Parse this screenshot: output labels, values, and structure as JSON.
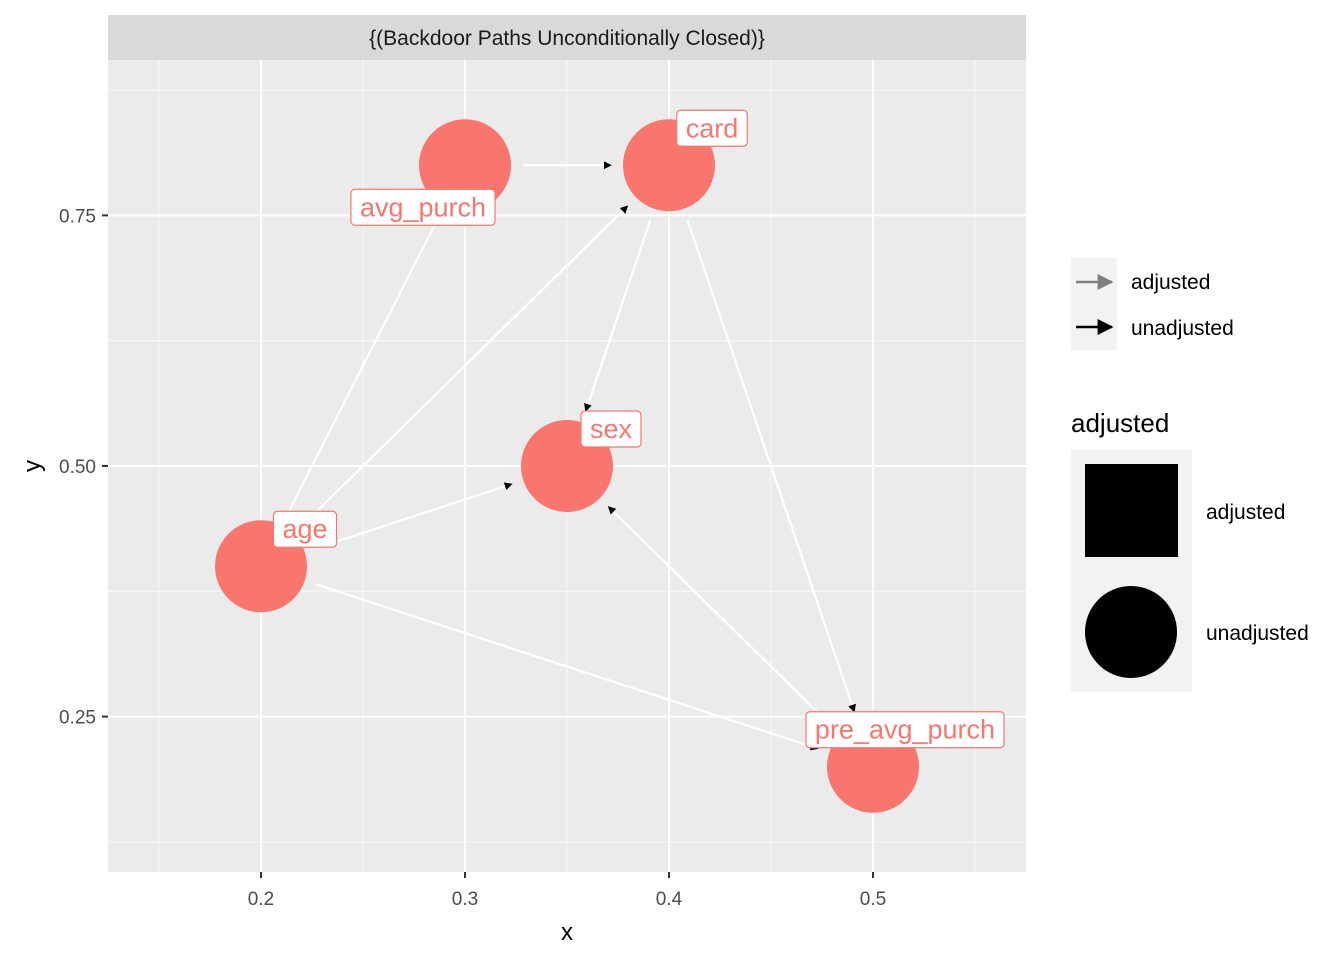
{
  "chart_data": {
    "type": "network",
    "facet_title": "{(Backdoor Paths Unconditionally Closed)}",
    "xlabel": "x",
    "ylabel": "y",
    "xlim": [
      0.125,
      0.575
    ],
    "ylim": [
      0.095,
      0.905
    ],
    "x_ticks": [
      0.2,
      0.3,
      0.4,
      0.5
    ],
    "x_tick_labels": [
      "0.2",
      "0.3",
      "0.4",
      "0.5"
    ],
    "y_ticks": [
      0.25,
      0.5,
      0.75
    ],
    "y_tick_labels": [
      "0.25",
      "0.50",
      "0.75"
    ],
    "node_color": "#F8766D",
    "nodes": [
      {
        "name": "avg_purch",
        "x": 0.3,
        "y": 0.8,
        "status": "unadjusted"
      },
      {
        "name": "card",
        "x": 0.4,
        "y": 0.8,
        "status": "unadjusted"
      },
      {
        "name": "sex",
        "x": 0.35,
        "y": 0.5,
        "status": "unadjusted"
      },
      {
        "name": "age",
        "x": 0.2,
        "y": 0.4,
        "status": "unadjusted"
      },
      {
        "name": "pre_avg_purch",
        "x": 0.5,
        "y": 0.2,
        "status": "unadjusted"
      }
    ],
    "edges": [
      {
        "from": "avg_purch",
        "to": "card",
        "type": "directed"
      },
      {
        "from": "age",
        "to": "avg_purch",
        "type": "directed"
      },
      {
        "from": "age",
        "to": "card",
        "type": "directed"
      },
      {
        "from": "age",
        "to": "sex",
        "type": "directed"
      },
      {
        "from": "age",
        "to": "pre_avg_purch",
        "type": "directed"
      },
      {
        "from": "card",
        "to": "sex",
        "type": "directed"
      },
      {
        "from": "card",
        "to": "pre_avg_purch",
        "type": "directed"
      },
      {
        "from": "sex",
        "to": "pre_avg_purch",
        "type": "bidirected"
      }
    ],
    "legend_edges": {
      "items": [
        {
          "label": "adjusted",
          "color": "#7f7f7f"
        },
        {
          "label": "unadjusted",
          "color": "#000000"
        }
      ]
    },
    "legend_shapes": {
      "title": "adjusted",
      "items": [
        {
          "label": "adjusted",
          "shape": "square"
        },
        {
          "label": "unadjusted",
          "shape": "circle"
        }
      ]
    },
    "legend_position": "right",
    "grid": true,
    "panel_background": "#EBEBEB",
    "grid_color": "#FFFFFF",
    "strip_background": "#D9D9D9"
  }
}
